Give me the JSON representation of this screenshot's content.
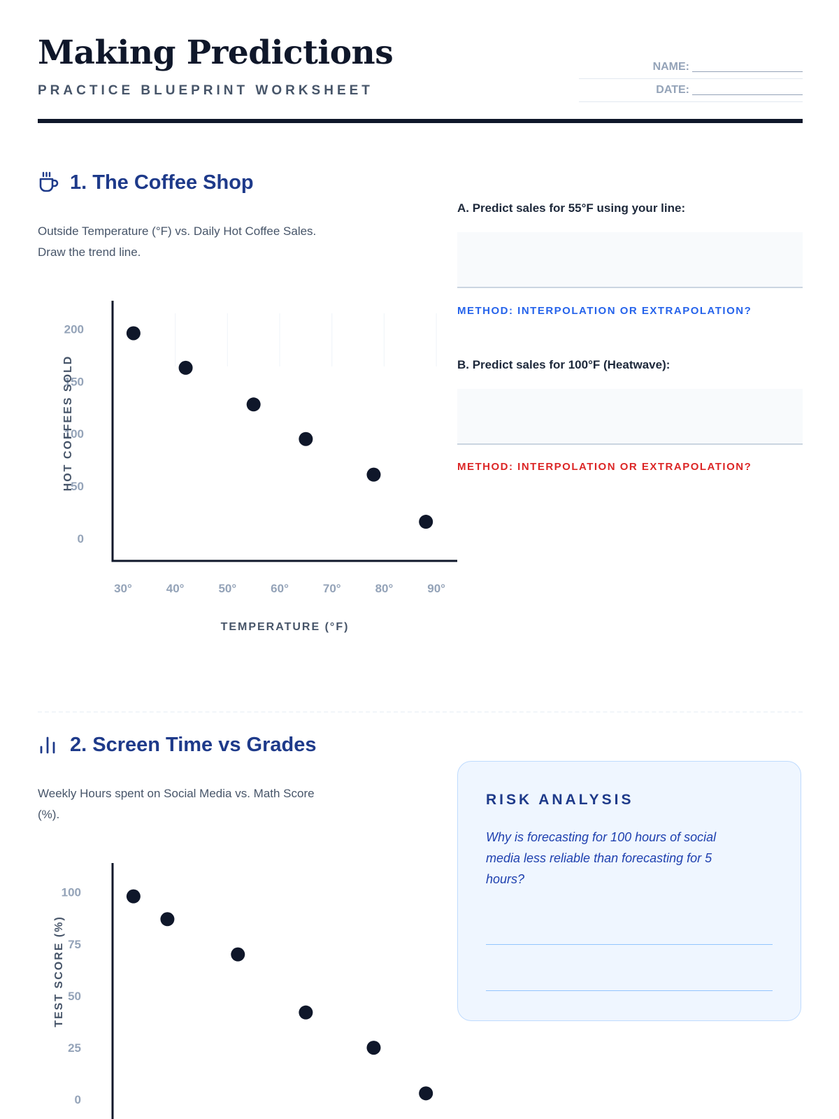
{
  "header": {
    "title": "Making Predictions",
    "subtitle": "PRACTICE BLUEPRINT WORKSHEET",
    "name_label": "NAME:",
    "date_label": "DATE:"
  },
  "section1": {
    "icon": "coffee-cup-icon",
    "title": "1. The Coffee Shop",
    "desc_line1": "Outside Temperature (°F) vs. Daily Hot Coffee Sales.",
    "desc_line2": "Draw the trend line.",
    "question_a": "A. Predict sales for 55°F using your line:",
    "method_a": "METHOD: INTERPOLATION OR EXTRAPOLATION?",
    "question_b": "B. Predict sales for 100°F (Heatwave):",
    "method_b": "METHOD: INTERPOLATION OR EXTRAPOLATION?"
  },
  "section2": {
    "icon": "bar-chart-icon",
    "title": "2. Screen Time vs Grades",
    "desc_line1": "Weekly Hours spent on Social Media vs. Math Score",
    "desc_line2": "(%).",
    "risk_title": "RISK ANALYSIS",
    "risk_text": "Why is forecasting for 100 hours of social media less reliable than forecasting for 5 hours?"
  },
  "colors": {
    "accent": "#1e3a8a",
    "method_a": "#2563eb",
    "method_b": "#dc2626",
    "point": "#0f172a",
    "tick": "#94a3b8"
  },
  "chart_data": [
    {
      "type": "scatter",
      "xlabel": "TEMPERATURE (°F)",
      "ylabel": "HOT COFFEES SOLD",
      "x_ticks": [
        30,
        40,
        50,
        60,
        70,
        80,
        90
      ],
      "x_tick_labels": [
        "30°",
        "40°",
        "50°",
        "60°",
        "70°",
        "80°",
        "90°"
      ],
      "y_ticks": [
        0,
        50,
        100,
        150,
        200
      ],
      "y_tick_labels": [
        "0",
        "50",
        "100",
        "150",
        "200"
      ],
      "xlim": [
        28,
        94
      ],
      "ylim": [
        -12,
        215
      ],
      "points": [
        {
          "x": 32,
          "y": 196
        },
        {
          "x": 42,
          "y": 163
        },
        {
          "x": 55,
          "y": 128
        },
        {
          "x": 65,
          "y": 95
        },
        {
          "x": 78,
          "y": 61
        },
        {
          "x": 88,
          "y": 16
        }
      ]
    },
    {
      "type": "scatter",
      "xlabel": "",
      "ylabel": "TEST SCORE (%)",
      "y_ticks": [
        0,
        25,
        50,
        75,
        100
      ],
      "y_tick_labels": [
        "0",
        "25",
        "50",
        "75",
        "100"
      ],
      "xlim": [
        28,
        94
      ],
      "ylim": [
        -6,
        108
      ],
      "points": [
        {
          "x": 32,
          "y": 98
        },
        {
          "x": 38.5,
          "y": 87
        },
        {
          "x": 52,
          "y": 70
        },
        {
          "x": 65,
          "y": 42
        },
        {
          "x": 78,
          "y": 25
        },
        {
          "x": 88,
          "y": 3
        }
      ]
    }
  ]
}
